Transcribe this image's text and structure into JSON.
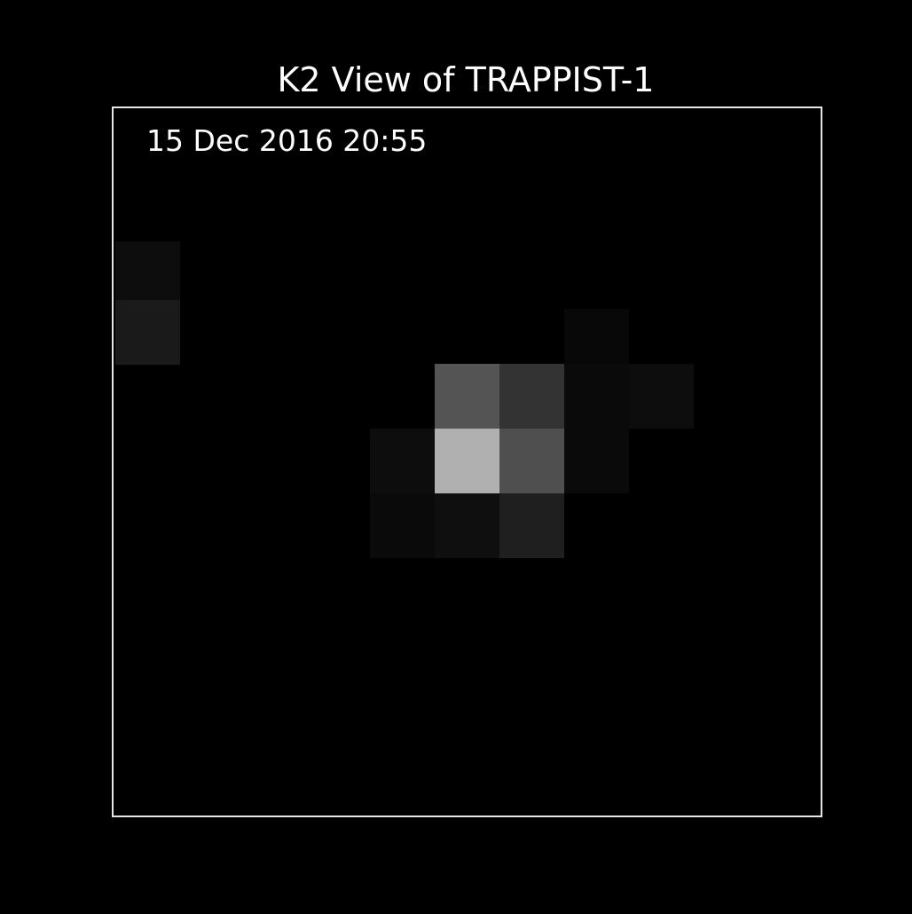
{
  "title": "K2 View of TRAPPIST-1",
  "timestamp": "15 Dec 2016 20:55",
  "pixel_brightness": [
    0.05,
    0.1,
    0.03,
    0.04,
    0.05,
    0.33,
    0.2,
    0.07,
    0.05,
    0.69,
    0.31,
    0.04,
    0.04,
    0.06,
    0.12
  ]
}
